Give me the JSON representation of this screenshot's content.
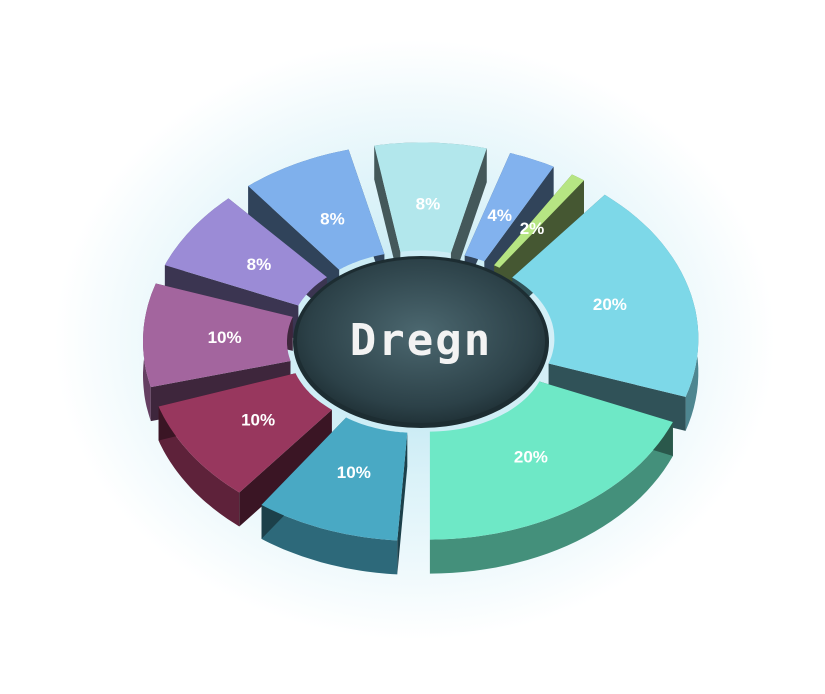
{
  "chart_data": {
    "type": "pie",
    "variant": "3d-exploded-donut",
    "center_label": "Dregn",
    "slices": [
      {
        "label": "20%",
        "value": 20,
        "color": "#7dd8e8"
      },
      {
        "label": "20%",
        "value": 20,
        "color": "#6ee8c6"
      },
      {
        "label": "10%",
        "value": 10,
        "color": "#49a9c4"
      },
      {
        "label": "10%",
        "value": 10,
        "color": "#98375e"
      },
      {
        "label": "10%",
        "value": 10,
        "color": "#a3659e"
      },
      {
        "label": "8%",
        "value": 8,
        "color": "#9b8bd6"
      },
      {
        "label": "8%",
        "value": 8,
        "color": "#7fb0ec"
      },
      {
        "label": "8%",
        "value": 8,
        "color": "#b2e7ec"
      },
      {
        "label": "4%",
        "value": 4,
        "color": "#82b2ee"
      },
      {
        "label": "2%",
        "value": 2,
        "color": "#b6e583"
      }
    ]
  }
}
